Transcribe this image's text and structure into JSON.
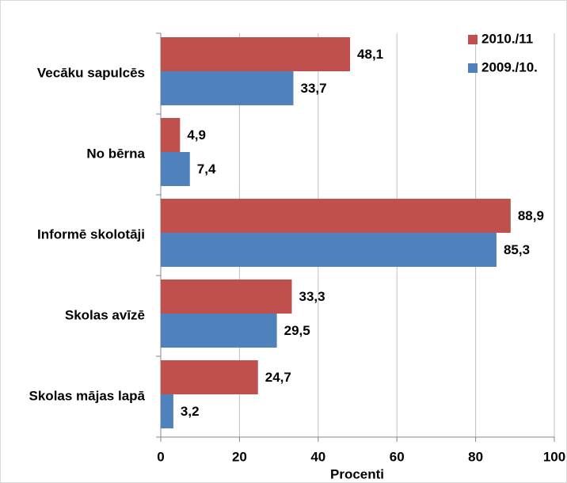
{
  "chart_data": {
    "type": "bar",
    "orientation": "horizontal",
    "categories": [
      "Vecāku sapulcēs",
      "No bērna",
      "Informē skolotāji",
      "Skolas avīzē",
      "Skolas mājas lapā"
    ],
    "series": [
      {
        "name": "2010./11",
        "color": "#c0504d",
        "values": [
          48.1,
          4.9,
          88.9,
          33.3,
          24.7
        ],
        "value_labels": [
          "48,1",
          "4,9",
          "88,9",
          "33,3",
          "24,7"
        ]
      },
      {
        "name": "2009./10.",
        "color": "#4f81bd",
        "values": [
          33.7,
          7.4,
          85.3,
          29.5,
          3.2
        ],
        "value_labels": [
          "33,7",
          "7,4",
          "85,3",
          "29,5",
          "3,2"
        ]
      }
    ],
    "xlabel": "Procenti",
    "xlim": [
      0,
      100
    ],
    "xticks": [
      0,
      20,
      40,
      60,
      80,
      100
    ],
    "grid": true,
    "legend": "upper right"
  }
}
